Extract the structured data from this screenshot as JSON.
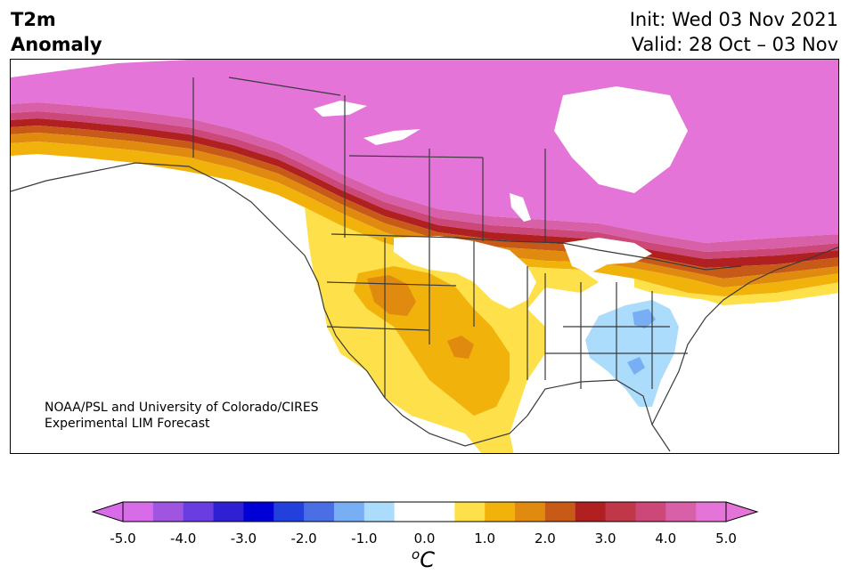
{
  "title": {
    "line1": "T2m",
    "line2": "Anomaly"
  },
  "dates": {
    "init": "Init: Wed 03 Nov 2021",
    "valid": "Valid: 28 Oct – 03 Nov"
  },
  "credit": {
    "line1": "NOAA/PSL and University of Colorado/CIRES",
    "line2": "Experimental LIM Forecast"
  },
  "colorbar": {
    "ticks": [
      "-5.0",
      "-4.0",
      "-3.0",
      "-2.0",
      "-1.0",
      "0.0",
      "1.0",
      "2.0",
      "3.0",
      "4.0",
      "5.0"
    ],
    "unit_symbol": "o",
    "unit_letter": "C",
    "colors": [
      "#d86be8",
      "#a055e0",
      "#6a3de0",
      "#3020d4",
      "#0000d6",
      "#2240dc",
      "#4a6ee4",
      "#78aef4",
      "#acdcfc",
      "#ffffff",
      "#ffffff",
      "#fde04a",
      "#f2b20c",
      "#e08a10",
      "#c85a18",
      "#b02020",
      "#c03848",
      "#cc4878",
      "#d860a8",
      "#e474d8"
    ],
    "min_color": "#d86be8",
    "max_color": "#e474d8"
  },
  "colors": {
    "magenta": "#e474d8",
    "pink": "#d860a8",
    "rose": "#cc4878",
    "crimson": "#b02020",
    "rust": "#c85a18",
    "orange": "#e08a10",
    "gold": "#f2b20c",
    "yellow": "#fde04a",
    "lightblue": "#acdcfc",
    "blue": "#78aef4",
    "border": "#3a3a3a"
  }
}
